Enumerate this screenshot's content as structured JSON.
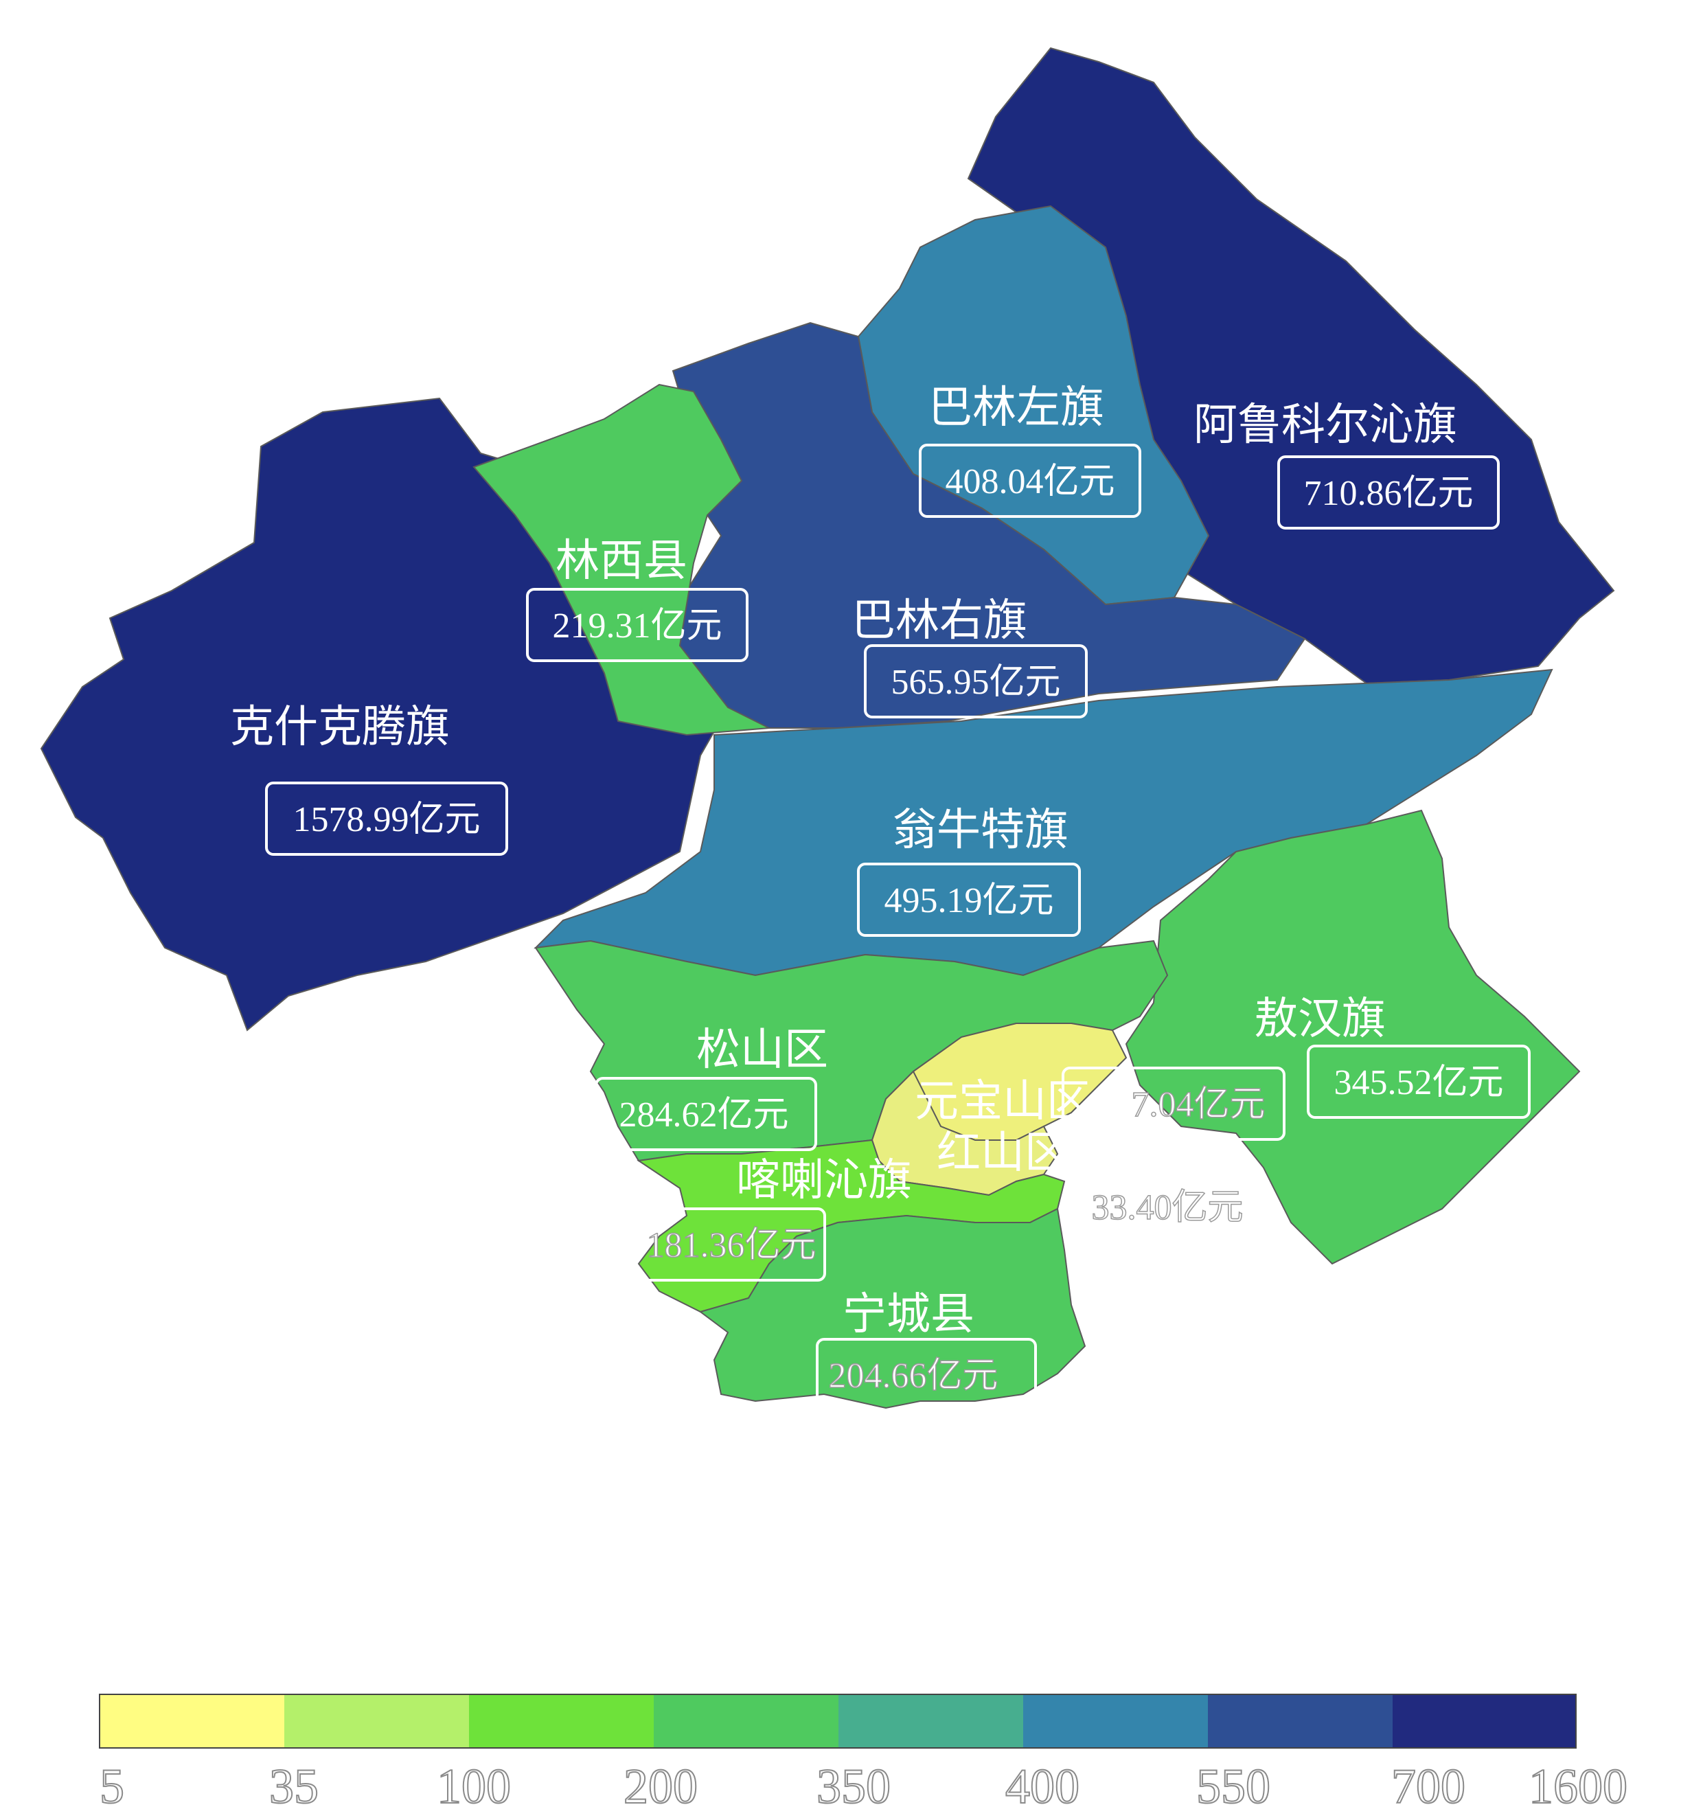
{
  "regions": {
    "keshiketeng": {
      "name": "克什克腾旗",
      "value": "1578.99亿元",
      "color": "#1c2a7e"
    },
    "arukeerqin": {
      "name": "阿鲁科尔沁旗",
      "value": "710.86亿元",
      "color": "#1c2a7e"
    },
    "balinzuo": {
      "name": "巴林左旗",
      "value": "408.04亿元",
      "color": "#3485ac"
    },
    "balinyou": {
      "name": "巴林右旗",
      "value": "565.95亿元",
      "color": "#2e4f94"
    },
    "linxi": {
      "name": "林西县",
      "value": "219.31亿元",
      "color": "#4fca5f"
    },
    "wengniute": {
      "name": "翁牛特旗",
      "value": "495.19亿元",
      "color": "#3485ac"
    },
    "aohan": {
      "name": "敖汉旗",
      "value": "345.52亿元",
      "color": "#4fca5f"
    },
    "songshan": {
      "name": "松山区",
      "value": "284.62亿元",
      "color": "#4fca5f"
    },
    "yuanbaoshan": {
      "name": "元宝山区",
      "value": "7.04亿元",
      "color": "#eef07c"
    },
    "hongshan": {
      "name": "红山区",
      "value": "33.40亿元",
      "color": "#e8ee80"
    },
    "harqin": {
      "name": "喀喇沁旗",
      "value": "181.36亿元",
      "color": "#6ee23a"
    },
    "ningcheng": {
      "name": "宁城县",
      "value": "204.66亿元",
      "color": "#4fca5f"
    }
  },
  "legend": {
    "colors": [
      "#fffd82",
      "#b4f06a",
      "#6ee23a",
      "#4fca5f",
      "#47ae8f",
      "#3485ac",
      "#2e4f94",
      "#212a7f"
    ],
    "ticks": [
      "5",
      "35",
      "100",
      "200",
      "350",
      "400",
      "550",
      "700",
      "1600"
    ]
  }
}
